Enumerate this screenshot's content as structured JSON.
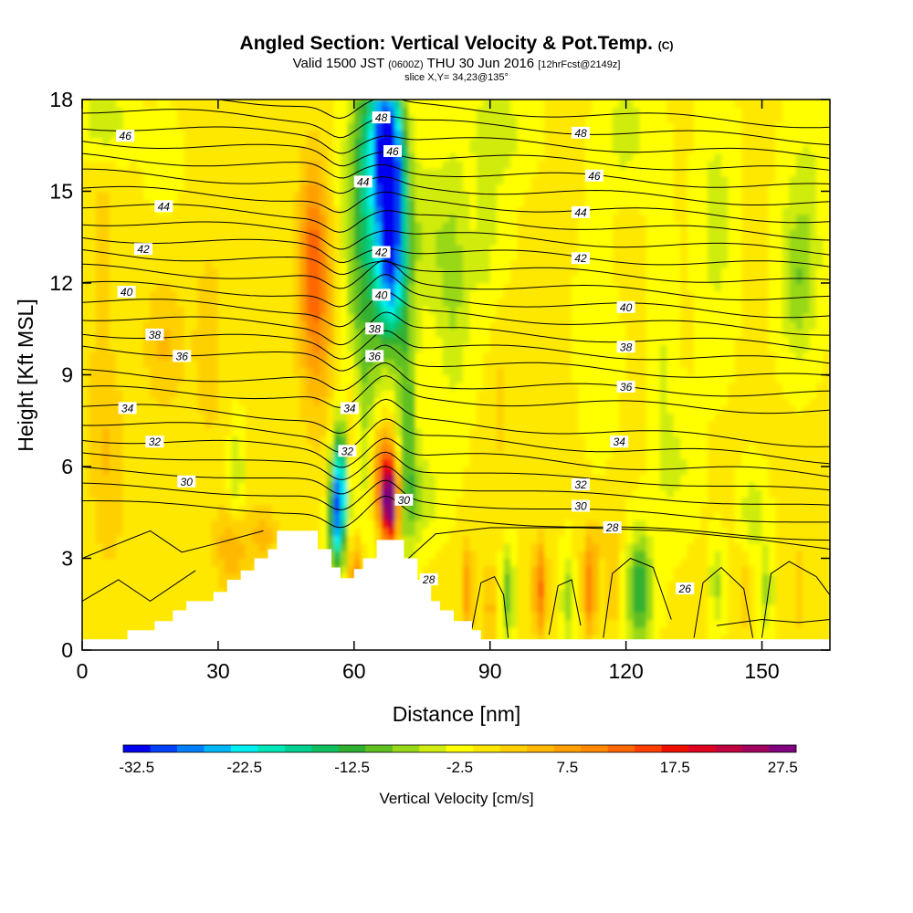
{
  "header": {
    "title": "Angled Section: Vertical Velocity & Pot.Temp.",
    "title_mark": "(C)",
    "valid_prefix": "Valid 1500 JST",
    "valid_zulu": "(0600Z)",
    "valid_date": "THU 30 Jun 2016",
    "valid_run": "[12hrFcst@2149z]",
    "slice": "slice X,Y= 34,23@135°"
  },
  "chart_data": {
    "type": "heatmap",
    "xlabel": "Distance [nm]",
    "ylabel": "Height [Kft MSL]",
    "xlim": [
      0,
      165
    ],
    "ylim": [
      0,
      18
    ],
    "x_ticks": [
      "0",
      "30",
      "60",
      "90",
      "120",
      "150"
    ],
    "x_tick_values": [
      0,
      30,
      60,
      90,
      120,
      150
    ],
    "y_ticks": [
      "0",
      "3",
      "6",
      "9",
      "12",
      "15",
      "18"
    ],
    "y_tick_values": [
      0,
      3,
      6,
      9,
      12,
      15,
      18
    ],
    "colorbar": {
      "title": "Vertical Velocity [cm/s]",
      "min": -32.5,
      "max": 30,
      "step": 2.5,
      "tick_labels": [
        "-32.5",
        "-22.5",
        "-12.5",
        "-2.5",
        "7.5",
        "17.5",
        "27.5"
      ],
      "tick_values": [
        -32.5,
        -22.5,
        -12.5,
        -2.5,
        7.5,
        17.5,
        27.5
      ],
      "colors": [
        "#0000f0",
        "#0040f8",
        "#0080f8",
        "#00b8f8",
        "#00f0f0",
        "#00e8b8",
        "#00d090",
        "#10c060",
        "#30b030",
        "#60c020",
        "#98d818",
        "#d0ec10",
        "#ffff00",
        "#ffe800",
        "#ffd000",
        "#ffb800",
        "#ffa000",
        "#ff8800",
        "#ff6800",
        "#ff4000",
        "#f01000",
        "#e00020",
        "#c00040",
        "#a00060",
        "#800080"
      ]
    },
    "theta_contour_labels": [
      {
        "text": "48",
        "x": 66.0,
        "y": 17.4
      },
      {
        "text": "46",
        "x": 9.5,
        "y": 16.8
      },
      {
        "text": "48",
        "x": 110.0,
        "y": 16.9
      },
      {
        "text": "46",
        "x": 68.5,
        "y": 16.3
      },
      {
        "text": "46",
        "x": 113.0,
        "y": 15.5
      },
      {
        "text": "44",
        "x": 62.0,
        "y": 15.3
      },
      {
        "text": "44",
        "x": 18.0,
        "y": 14.5
      },
      {
        "text": "44",
        "x": 110.0,
        "y": 14.3
      },
      {
        "text": "42",
        "x": 13.5,
        "y": 13.1
      },
      {
        "text": "42",
        "x": 66.0,
        "y": 13.0
      },
      {
        "text": "42",
        "x": 110.0,
        "y": 12.8
      },
      {
        "text": "40",
        "x": 9.8,
        "y": 11.7
      },
      {
        "text": "40",
        "x": 66.0,
        "y": 11.6
      },
      {
        "text": "40",
        "x": 120.0,
        "y": 11.2
      },
      {
        "text": "38",
        "x": 16.0,
        "y": 10.3
      },
      {
        "text": "38",
        "x": 64.5,
        "y": 10.5
      },
      {
        "text": "38",
        "x": 120.0,
        "y": 9.9
      },
      {
        "text": "36",
        "x": 22.0,
        "y": 9.6
      },
      {
        "text": "36",
        "x": 64.5,
        "y": 9.6
      },
      {
        "text": "36",
        "x": 120.0,
        "y": 8.6
      },
      {
        "text": "34",
        "x": 10.0,
        "y": 7.9
      },
      {
        "text": "34",
        "x": 59.0,
        "y": 7.9
      },
      {
        "text": "34",
        "x": 118.5,
        "y": 6.8
      },
      {
        "text": "32",
        "x": 16.0,
        "y": 6.8
      },
      {
        "text": "32",
        "x": 58.5,
        "y": 6.5
      },
      {
        "text": "32",
        "x": 110.0,
        "y": 5.4
      },
      {
        "text": "30",
        "x": 23.0,
        "y": 5.5
      },
      {
        "text": "30",
        "x": 71.0,
        "y": 4.9
      },
      {
        "text": "30",
        "x": 110.0,
        "y": 4.7
      },
      {
        "text": "28",
        "x": 117.0,
        "y": 4.0
      },
      {
        "text": "28",
        "x": 76.5,
        "y": 2.3
      },
      {
        "text": "26",
        "x": 133.0,
        "y": 2.0
      }
    ],
    "terrain_profile": [
      [
        0,
        0.35
      ],
      [
        10,
        0.35
      ],
      [
        10,
        0.65
      ],
      [
        16,
        0.65
      ],
      [
        16,
        0.95
      ],
      [
        20,
        0.95
      ],
      [
        20,
        1.3
      ],
      [
        23,
        1.3
      ],
      [
        23,
        1.6
      ],
      [
        29,
        1.6
      ],
      [
        29,
        1.9
      ],
      [
        32,
        1.9
      ],
      [
        32,
        2.3
      ],
      [
        35,
        2.3
      ],
      [
        35,
        2.6
      ],
      [
        38,
        2.6
      ],
      [
        38,
        3.0
      ],
      [
        41,
        3.0
      ],
      [
        41,
        3.3
      ],
      [
        43,
        3.3
      ],
      [
        43,
        3.9
      ],
      [
        52,
        3.9
      ],
      [
        52,
        3.3
      ],
      [
        55,
        3.3
      ],
      [
        55,
        2.7
      ],
      [
        57,
        2.7
      ],
      [
        57,
        2.35
      ],
      [
        60,
        2.35
      ],
      [
        60,
        2.65
      ],
      [
        62,
        2.65
      ],
      [
        62,
        3.0
      ],
      [
        65,
        3.0
      ],
      [
        65,
        3.6
      ],
      [
        71,
        3.6
      ],
      [
        71,
        3.0
      ],
      [
        74,
        3.0
      ],
      [
        74,
        2.3
      ],
      [
        77,
        2.3
      ],
      [
        77,
        1.6
      ],
      [
        79,
        1.6
      ],
      [
        79,
        1.3
      ],
      [
        82,
        1.3
      ],
      [
        82,
        0.95
      ],
      [
        86,
        0.95
      ],
      [
        86,
        0.65
      ],
      [
        88,
        0.65
      ],
      [
        88,
        0.35
      ],
      [
        165,
        0.35
      ]
    ],
    "vertical_velocity_features": [
      {
        "x": 67.0,
        "y": 16.5,
        "sx": 2.2,
        "sy": 2.0,
        "value": -24
      },
      {
        "x": 69.0,
        "y": 14.3,
        "sx": 2.2,
        "sy": 2.4,
        "value": -21
      },
      {
        "x": 67.5,
        "y": 12.0,
        "sx": 2.2,
        "sy": 1.5,
        "value": -13
      },
      {
        "x": 57.0,
        "y": 5.5,
        "sx": 1.3,
        "sy": 1.3,
        "value": -22
      },
      {
        "x": 56.0,
        "y": 4.0,
        "sx": 1.2,
        "sy": 1.2,
        "value": -15
      },
      {
        "x": 62.0,
        "y": 11.0,
        "sx": 3.0,
        "sy": 5.0,
        "value": -9
      },
      {
        "x": 63.5,
        "y": 16.0,
        "sx": 3.0,
        "sy": 2.5,
        "value": -9
      },
      {
        "x": 71.5,
        "y": 6.8,
        "sx": 1.6,
        "sy": 2.5,
        "value": -9
      },
      {
        "x": 74.0,
        "y": 5.0,
        "sx": 3.5,
        "sy": 1.0,
        "value": -6
      },
      {
        "x": 51.0,
        "y": 13.0,
        "sx": 2.2,
        "sy": 2.2,
        "value": 11
      },
      {
        "x": 52.0,
        "y": 10.3,
        "sx": 3.0,
        "sy": 2.5,
        "value": 6
      },
      {
        "x": 68.0,
        "y": 4.8,
        "sx": 1.4,
        "sy": 0.9,
        "value": 29
      },
      {
        "x": 66.5,
        "y": 5.8,
        "sx": 2.0,
        "sy": 1.2,
        "value": 14
      },
      {
        "x": 59.5,
        "y": 7.0,
        "sx": 1.2,
        "sy": 1.8,
        "value": 8
      },
      {
        "x": 60.5,
        "y": 2.5,
        "sx": 1.2,
        "sy": 0.8,
        "value": 12
      },
      {
        "x": 123.0,
        "y": 2.0,
        "sx": 2.0,
        "sy": 1.3,
        "value": -13
      },
      {
        "x": 94.0,
        "y": 1.8,
        "sx": 1.0,
        "sy": 1.1,
        "value": -10
      },
      {
        "x": 107.0,
        "y": 1.7,
        "sx": 1.0,
        "sy": 1.1,
        "value": -7
      },
      {
        "x": 140.0,
        "y": 2.2,
        "sx": 1.2,
        "sy": 1.0,
        "value": -6
      },
      {
        "x": 151.0,
        "y": 2.0,
        "sx": 1.2,
        "sy": 1.0,
        "value": -6
      },
      {
        "x": 85.0,
        "y": 2.0,
        "sx": 1.0,
        "sy": 1.0,
        "value": 9
      },
      {
        "x": 90.0,
        "y": 1.4,
        "sx": 1.0,
        "sy": 1.0,
        "value": 6
      },
      {
        "x": 101.0,
        "y": 2.0,
        "sx": 1.0,
        "sy": 1.1,
        "value": 13
      },
      {
        "x": 112.0,
        "y": 2.0,
        "sx": 1.0,
        "sy": 1.1,
        "value": 12
      },
      {
        "x": 117.0,
        "y": 2.0,
        "sx": 1.0,
        "sy": 1.0,
        "value": 5
      },
      {
        "x": 146.0,
        "y": 1.8,
        "sx": 1.0,
        "sy": 1.0,
        "value": 4
      },
      {
        "x": 158.0,
        "y": 2.0,
        "sx": 1.0,
        "sy": 1.0,
        "value": 4
      },
      {
        "x": 33.0,
        "y": 3.3,
        "sx": 2.5,
        "sy": 1.0,
        "value": 7
      },
      {
        "x": 40.0,
        "y": 3.8,
        "sx": 2.0,
        "sy": 0.7,
        "value": 6
      },
      {
        "x": 34.0,
        "y": 5.8,
        "sx": 1.2,
        "sy": 1.2,
        "value": -6
      },
      {
        "x": 18.0,
        "y": 10.0,
        "sx": 3.0,
        "sy": 1.5,
        "value": 5
      },
      {
        "x": 6.0,
        "y": 6.0,
        "sx": 3.0,
        "sy": 2.5,
        "value": 4
      },
      {
        "x": 28.0,
        "y": 10.0,
        "sx": 3.0,
        "sy": 3.0,
        "value": 3
      },
      {
        "x": 92.0,
        "y": 9.0,
        "sx": 2.0,
        "sy": 3.0,
        "value": 3
      },
      {
        "x": 5.0,
        "y": 14.5,
        "sx": 3.0,
        "sy": 1.5,
        "value": 2
      },
      {
        "x": 5.0,
        "y": 17.3,
        "sx": 4.0,
        "sy": 1.0,
        "value": -5
      },
      {
        "x": 18.0,
        "y": 16.0,
        "sx": 2.5,
        "sy": 1.0,
        "value": -3
      },
      {
        "x": 76.0,
        "y": 13.5,
        "sx": 3.0,
        "sy": 2.0,
        "value": -5
      },
      {
        "x": 82.0,
        "y": 12.0,
        "sx": 2.5,
        "sy": 3.0,
        "value": -6
      },
      {
        "x": 90.0,
        "y": 13.0,
        "sx": 3.0,
        "sy": 2.5,
        "value": -4
      },
      {
        "x": 92.0,
        "y": 17.0,
        "sx": 5.0,
        "sy": 1.2,
        "value": -4
      },
      {
        "x": 120.0,
        "y": 17.0,
        "sx": 4.0,
        "sy": 1.5,
        "value": -4
      },
      {
        "x": 140.0,
        "y": 14.0,
        "sx": 3.0,
        "sy": 3.0,
        "value": -4
      },
      {
        "x": 158.0,
        "y": 12.0,
        "sx": 3.0,
        "sy": 1.8,
        "value": -7
      },
      {
        "x": 160.0,
        "y": 15.5,
        "sx": 3.5,
        "sy": 2.5,
        "value": -3
      },
      {
        "x": 128.0,
        "y": 9.5,
        "sx": 2.0,
        "sy": 4.0,
        "value": -3
      },
      {
        "x": 114.0,
        "y": 10.5,
        "sx": 3.0,
        "sy": 2.5,
        "value": -3
      },
      {
        "x": 132.0,
        "y": 6.0,
        "sx": 3.0,
        "sy": 1.5,
        "value": -3
      },
      {
        "x": 148.0,
        "y": 4.5,
        "sx": 2.0,
        "sy": 1.0,
        "value": -5
      },
      {
        "x": 115.0,
        "y": 3.6,
        "sx": 3.0,
        "sy": 0.5,
        "value": 3
      },
      {
        "x": 120.0,
        "y": 13.0,
        "sx": 2.0,
        "sy": 1.0,
        "value": 2
      },
      {
        "x": 72.0,
        "y": 9.5,
        "sx": 1.5,
        "sy": 2.0,
        "value": -3
      },
      {
        "x": 4.0,
        "y": 10.0,
        "sx": 2.0,
        "sy": 3.0,
        "value": 2
      }
    ]
  }
}
